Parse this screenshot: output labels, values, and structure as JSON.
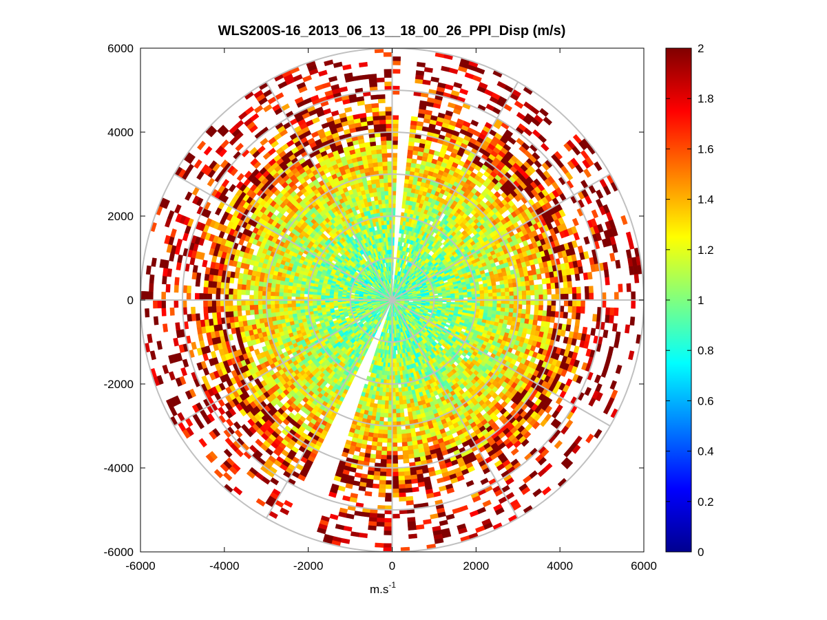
{
  "chart_data": {
    "type": "heatmap",
    "subtype": "polar PPI scan",
    "title": "WLS200S-16_2013_06_13__18_00_26_PPI_Disp (m/s)",
    "xlabel_base": "m.s",
    "xlabel_exp": "-1",
    "ylabel": "",
    "xlim": [
      -6000,
      6000
    ],
    "ylim": [
      -6000,
      6000
    ],
    "x_ticks": [
      -6000,
      -4000,
      -2000,
      0,
      2000,
      4000,
      6000
    ],
    "y_ticks": [
      6000,
      4000,
      2000,
      0,
      -2000,
      -4000,
      -6000
    ],
    "range_rings": [
      1000,
      2000,
      3000,
      4000,
      5000,
      6000
    ],
    "spokes_deg": [
      0,
      30,
      60,
      90,
      120,
      150,
      180,
      210,
      240,
      270,
      300,
      330
    ],
    "grid": true,
    "colormap": "jet",
    "colorbar": {
      "min": 0,
      "max": 2,
      "tick_values": [
        0,
        0.2,
        0.4,
        0.6,
        0.8,
        1,
        1.2,
        1.4,
        1.6,
        1.8,
        2
      ],
      "tick_labels": [
        "0",
        "0.2",
        "0.4",
        "0.6",
        "0.8",
        "1",
        "1.2",
        "1.4",
        "1.6",
        "1.8",
        "2"
      ]
    },
    "scan": {
      "gate_length": 100,
      "max_range": 6000,
      "azimuth_step_deg": 2,
      "blind_sectors_deg": [
        [
          1,
          5
        ],
        [
          198,
          206
        ]
      ],
      "typical_value_near": 0.95,
      "typical_value_far": 1.9
    }
  }
}
